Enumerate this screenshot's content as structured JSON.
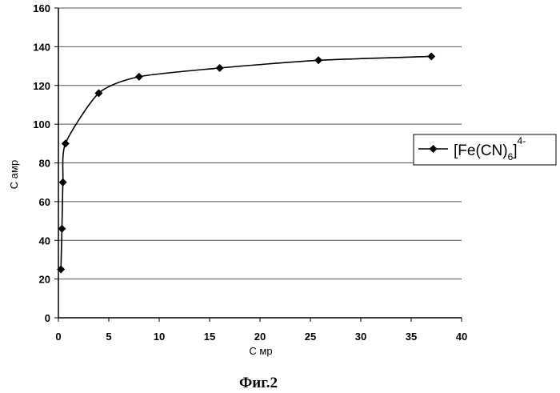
{
  "chart_data": {
    "type": "line",
    "xlabel": "С мр",
    "ylabel": "С амр",
    "xlim": [
      0,
      40
    ],
    "ylim": [
      0,
      160
    ],
    "x_ticks": [
      "0",
      "5",
      "10",
      "15",
      "20",
      "25",
      "30",
      "35",
      "40"
    ],
    "y_ticks": [
      "0",
      "20",
      "40",
      "60",
      "80",
      "100",
      "120",
      "140",
      "160"
    ],
    "grid": "horizontal",
    "legend_position": "right",
    "series": [
      {
        "name": "[Fe(CN)6]4-",
        "name_parts": {
          "main": "[Fe(CN)",
          "sub": "6",
          "close": "]",
          "sup": "4-"
        },
        "marker": "diamond",
        "color": "#000000",
        "x": [
          0.25,
          0.35,
          0.45,
          0.7,
          4.0,
          8.0,
          16.0,
          25.8,
          37.0
        ],
        "y": [
          25,
          46,
          70,
          90,
          116,
          124.5,
          129,
          133,
          135
        ]
      }
    ]
  },
  "caption": "Фиг.2"
}
